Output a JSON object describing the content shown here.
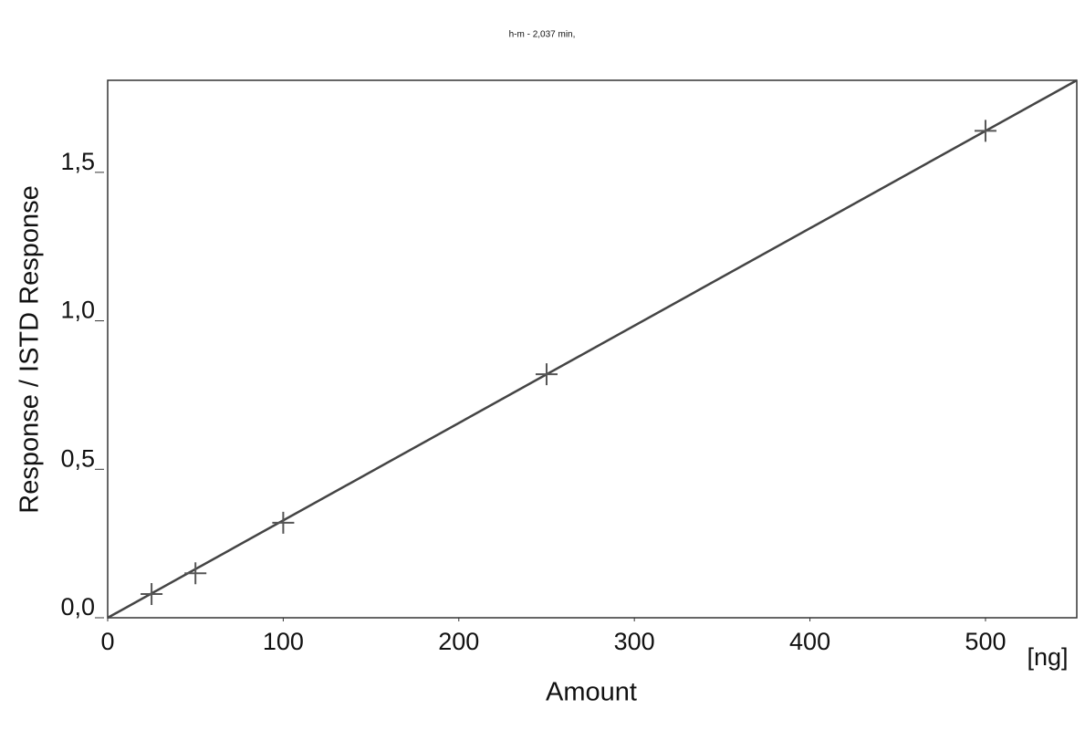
{
  "chart_data": {
    "type": "scatter",
    "title": "h-m - 2,037 min,",
    "x_label": "Amount",
    "x_unit": "[ng]",
    "y_label": "Response / ISTD Response",
    "x": [
      25,
      50,
      100,
      250,
      500
    ],
    "values": [
      0.08,
      0.15,
      0.32,
      0.82,
      1.64
    ],
    "color": "#555555",
    "fit": {
      "x": [
        0,
        552
      ],
      "values": [
        0,
        1.81
      ],
      "color": "#444444"
    },
    "xlim": [
      0,
      552
    ],
    "ylim": [
      0,
      1.81
    ],
    "xticks": [
      0,
      100,
      200,
      300,
      400,
      500
    ],
    "yticks": [
      {
        "value": 0,
        "label": "0,0"
      },
      {
        "value": 0.5,
        "label": "0,5"
      },
      {
        "value": 1.0,
        "label": "1,0"
      },
      {
        "value": 1.5,
        "label": "1,5"
      }
    ],
    "grid": false
  }
}
